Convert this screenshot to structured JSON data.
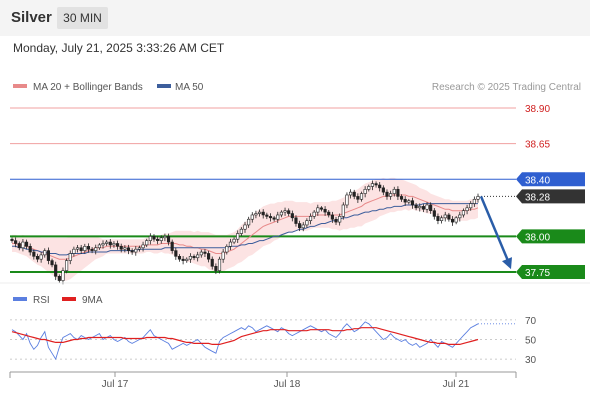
{
  "header": {
    "symbol": "Silver",
    "timeframe": "30 MIN",
    "datetime": "Monday, July 21, 2025 3:33:26 AM CET"
  },
  "legend": {
    "ma20_label": "MA 20 + Bollinger Bands",
    "ma50_label": "MA 50",
    "rsi_label": "RSI",
    "ma9_label": "9MA",
    "copyright": "Research © 2025 Trading Central"
  },
  "colors": {
    "ma20": "#e88a8a",
    "ma50": "#3d5e9c",
    "bollinger": "#fbdede",
    "resistance": "#f0a0a0",
    "pivot": "#2f5fd0",
    "support": "#1a8a1a",
    "current": "#333333",
    "rsi": "#5b7fe0",
    "rsi_ma": "#e02020",
    "arrow": "#2a5da8"
  },
  "chart_data": [
    {
      "type": "candlestick",
      "x_ticks": [
        "Jul 17",
        "Jul 18",
        "Jul 21"
      ],
      "ylim": [
        37.68,
        38.97
      ],
      "levels": [
        {
          "label": "38.90",
          "value": 38.9,
          "kind": "resistance"
        },
        {
          "label": "38.65",
          "value": 38.65,
          "kind": "resistance"
        },
        {
          "label": "38.40",
          "value": 38.4,
          "kind": "pivot"
        },
        {
          "label": "38.28",
          "value": 38.28,
          "kind": "current"
        },
        {
          "label": "38.00",
          "value": 38.0,
          "kind": "support"
        },
        {
          "label": "37.75",
          "value": 37.75,
          "kind": "support"
        }
      ],
      "close": [
        37.97,
        37.95,
        37.92,
        37.96,
        37.93,
        37.89,
        37.86,
        37.84,
        37.87,
        37.9,
        37.83,
        37.8,
        37.72,
        37.69,
        37.76,
        37.83,
        37.88,
        37.91,
        37.92,
        37.9,
        37.93,
        37.91,
        37.9,
        37.92,
        37.94,
        37.95,
        37.96,
        37.94,
        37.95,
        37.93,
        37.91,
        37.92,
        37.9,
        37.89,
        37.91,
        37.92,
        37.94,
        37.97,
        38.0,
        37.98,
        37.97,
        37.99,
        38.0,
        37.96,
        37.9,
        37.86,
        37.84,
        37.83,
        37.84,
        37.86,
        37.85,
        37.87,
        37.89,
        37.88,
        37.84,
        37.79,
        37.76,
        37.84,
        37.89,
        37.93,
        37.96,
        37.98,
        38.02,
        38.05,
        38.08,
        38.12,
        38.15,
        38.16,
        38.17,
        38.15,
        38.14,
        38.13,
        38.12,
        38.15,
        38.17,
        38.18,
        38.16,
        38.13,
        38.09,
        38.06,
        38.08,
        38.11,
        38.14,
        38.17,
        38.2,
        38.19,
        38.17,
        38.15,
        38.12,
        38.1,
        38.14,
        38.22,
        38.29,
        38.31,
        38.28,
        38.26,
        38.3,
        38.33,
        38.35,
        38.37,
        38.36,
        38.34,
        38.31,
        38.28,
        38.3,
        38.33,
        38.28,
        38.26,
        38.24,
        38.25,
        38.22,
        38.2,
        38.21,
        38.19,
        38.22,
        38.18,
        38.14,
        38.11,
        38.13,
        38.15,
        38.12,
        38.1,
        38.13,
        38.15,
        38.18,
        38.2,
        38.23,
        38.26,
        38.28
      ],
      "ma20": [
        37.95,
        37.95,
        37.94,
        37.94,
        37.93,
        37.92,
        37.91,
        37.9,
        37.89,
        37.88,
        37.87,
        37.86,
        37.85,
        37.84,
        37.84,
        37.84,
        37.85,
        37.86,
        37.87,
        37.88,
        37.89,
        37.9,
        37.91,
        37.92,
        37.92,
        37.92,
        37.93,
        37.93,
        37.93,
        37.93,
        37.93,
        37.93,
        37.93,
        37.93,
        37.93,
        37.93,
        37.93,
        37.94,
        37.94,
        37.94,
        37.94,
        37.95,
        37.95,
        37.95,
        37.95,
        37.95,
        37.94,
        37.94,
        37.93,
        37.93,
        37.92,
        37.92,
        37.91,
        37.91,
        37.9,
        37.89,
        37.88,
        37.88,
        37.88,
        37.89,
        37.9,
        37.91,
        37.93,
        37.95,
        37.97,
        37.99,
        38.01,
        38.03,
        38.05,
        38.07,
        38.08,
        38.09,
        38.1,
        38.11,
        38.12,
        38.13,
        38.14,
        38.14,
        38.14,
        38.14,
        38.14,
        38.14,
        38.14,
        38.15,
        38.15,
        38.15,
        38.15,
        38.15,
        38.15,
        38.15,
        38.15,
        38.16,
        38.17,
        38.18,
        38.19,
        38.2,
        38.21,
        38.23,
        38.24,
        38.25,
        38.26,
        38.27,
        38.28,
        38.28,
        38.29,
        38.29,
        38.29,
        38.29,
        38.29,
        38.28,
        38.28,
        38.27,
        38.26,
        38.25,
        38.24,
        38.23,
        38.22,
        38.21,
        38.2,
        38.19,
        38.19,
        38.18,
        38.18,
        38.18,
        38.18,
        38.18,
        38.19,
        38.19,
        38.2
      ],
      "ma50": [
        37.93,
        37.93,
        37.92,
        37.92,
        37.91,
        37.91,
        37.9,
        37.9,
        37.89,
        37.89,
        37.88,
        37.88,
        37.88,
        37.87,
        37.87,
        37.87,
        37.88,
        37.88,
        37.88,
        37.88,
        37.88,
        37.89,
        37.89,
        37.89,
        37.89,
        37.89,
        37.89,
        37.9,
        37.9,
        37.9,
        37.9,
        37.9,
        37.9,
        37.9,
        37.9,
        37.91,
        37.91,
        37.91,
        37.91,
        37.91,
        37.91,
        37.91,
        37.92,
        37.92,
        37.92,
        37.92,
        37.92,
        37.92,
        37.92,
        37.92,
        37.92,
        37.92,
        37.92,
        37.92,
        37.92,
        37.92,
        37.92,
        37.92,
        37.92,
        37.92,
        37.93,
        37.93,
        37.93,
        37.94,
        37.94,
        37.95,
        37.95,
        37.96,
        37.97,
        37.97,
        37.98,
        37.99,
        38.0,
        38.0,
        38.01,
        38.02,
        38.03,
        38.03,
        38.04,
        38.05,
        38.05,
        38.06,
        38.07,
        38.07,
        38.08,
        38.09,
        38.09,
        38.1,
        38.11,
        38.11,
        38.12,
        38.13,
        38.13,
        38.14,
        38.15,
        38.15,
        38.16,
        38.17,
        38.17,
        38.18,
        38.18,
        38.19,
        38.19,
        38.2,
        38.2,
        38.21,
        38.21,
        38.21,
        38.22,
        38.22,
        38.22,
        38.22,
        38.22,
        38.23,
        38.23,
        38.23,
        38.23,
        38.23,
        38.23,
        38.23,
        38.23,
        38.23,
        38.23,
        38.23,
        38.23,
        38.23,
        38.23,
        38.23,
        38.23
      ],
      "bb_halfwidth": [
        0.06,
        0.06,
        0.06,
        0.07,
        0.07,
        0.08,
        0.09,
        0.1,
        0.1,
        0.11,
        0.12,
        0.13,
        0.14,
        0.15,
        0.15,
        0.15,
        0.15,
        0.14,
        0.13,
        0.12,
        0.11,
        0.1,
        0.09,
        0.08,
        0.07,
        0.06,
        0.05,
        0.05,
        0.05,
        0.05,
        0.05,
        0.05,
        0.05,
        0.05,
        0.05,
        0.05,
        0.05,
        0.05,
        0.05,
        0.06,
        0.06,
        0.06,
        0.07,
        0.07,
        0.08,
        0.09,
        0.1,
        0.1,
        0.11,
        0.11,
        0.11,
        0.12,
        0.12,
        0.12,
        0.13,
        0.13,
        0.13,
        0.13,
        0.13,
        0.12,
        0.12,
        0.12,
        0.12,
        0.13,
        0.13,
        0.13,
        0.14,
        0.14,
        0.14,
        0.14,
        0.14,
        0.14,
        0.13,
        0.13,
        0.12,
        0.12,
        0.11,
        0.11,
        0.1,
        0.1,
        0.1,
        0.1,
        0.09,
        0.09,
        0.09,
        0.09,
        0.09,
        0.09,
        0.1,
        0.1,
        0.11,
        0.11,
        0.12,
        0.12,
        0.13,
        0.13,
        0.14,
        0.14,
        0.14,
        0.14,
        0.14,
        0.13,
        0.13,
        0.12,
        0.12,
        0.12,
        0.11,
        0.11,
        0.1,
        0.1,
        0.09,
        0.09,
        0.08,
        0.08,
        0.08,
        0.07,
        0.07,
        0.07,
        0.07,
        0.07,
        0.07,
        0.07,
        0.07,
        0.07,
        0.07,
        0.07,
        0.07,
        0.07,
        0.07
      ]
    },
    {
      "type": "line",
      "title": "RSI",
      "y_ticks": [
        70,
        50,
        30
      ],
      "ylim": [
        25,
        75
      ],
      "series": [
        {
          "name": "RSI",
          "values": [
            60,
            58,
            54,
            50,
            56,
            46,
            40,
            44,
            52,
            58,
            42,
            36,
            30,
            42,
            52,
            54,
            56,
            52,
            50,
            54,
            52,
            50,
            52,
            54,
            56,
            50,
            52,
            54,
            50,
            48,
            50,
            52,
            48,
            46,
            48,
            50,
            52,
            56,
            60,
            54,
            52,
            50,
            48,
            46,
            40,
            42,
            44,
            46,
            44,
            46,
            48,
            50,
            46,
            42,
            40,
            38,
            36,
            48,
            52,
            54,
            56,
            58,
            60,
            62,
            60,
            64,
            62,
            58,
            60,
            62,
            64,
            62,
            60,
            58,
            62,
            60,
            56,
            54,
            56,
            58,
            60,
            62,
            64,
            62,
            60,
            58,
            60,
            56,
            54,
            52,
            56,
            62,
            66,
            62,
            58,
            60,
            64,
            68,
            66,
            62,
            58,
            54,
            50,
            52,
            56,
            52,
            50,
            48,
            50,
            46,
            44,
            46,
            42,
            44,
            46,
            50,
            46,
            42,
            48,
            46,
            44,
            42,
            46,
            50,
            54,
            58,
            62,
            64,
            66
          ]
        },
        {
          "name": "9MA",
          "values": [
            58,
            57,
            56,
            55,
            54,
            53,
            52,
            51,
            50,
            50,
            49,
            48,
            47,
            47,
            47,
            48,
            49,
            50,
            50,
            51,
            51,
            52,
            52,
            52,
            52,
            52,
            52,
            52,
            52,
            52,
            52,
            51,
            51,
            51,
            51,
            51,
            51,
            52,
            52,
            52,
            52,
            52,
            52,
            51,
            51,
            50,
            49,
            48,
            47,
            47,
            46,
            46,
            46,
            46,
            46,
            45,
            45,
            45,
            46,
            47,
            48,
            49,
            51,
            53,
            54,
            55,
            56,
            57,
            58,
            59,
            59,
            60,
            60,
            60,
            60,
            60,
            59,
            59,
            59,
            59,
            59,
            59,
            60,
            60,
            60,
            60,
            60,
            60,
            59,
            59,
            59,
            59,
            60,
            60,
            61,
            61,
            62,
            62,
            62,
            62,
            62,
            61,
            60,
            59,
            58,
            57,
            56,
            55,
            54,
            53,
            52,
            51,
            50,
            49,
            48,
            47,
            47,
            46,
            46,
            46,
            45,
            45,
            45,
            45,
            46,
            47,
            48,
            49,
            50
          ]
        }
      ]
    }
  ]
}
